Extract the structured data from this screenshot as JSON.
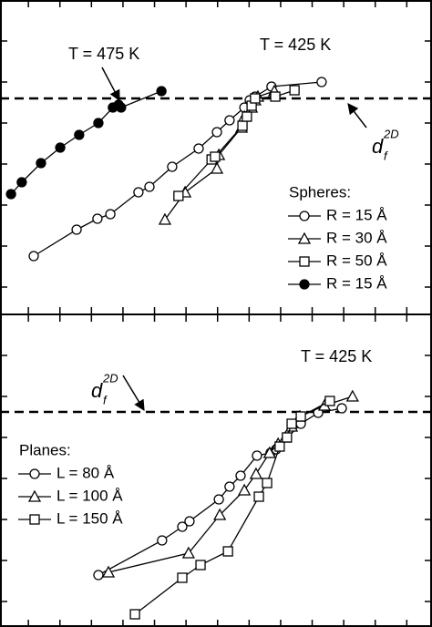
{
  "chart_data": [
    {
      "type": "line",
      "annotations": [
        "T = 475 K",
        "T = 425 K"
      ],
      "reference_line": 23.7,
      "reference_label": {
        "base": "d",
        "sub": "f",
        "sup": "2D"
      },
      "legend_title": "Spheres:",
      "legend": "lower right",
      "xlim": [
        0,
        137
      ],
      "xticks": [
        9,
        19,
        29,
        39,
        49,
        59,
        69,
        79,
        89,
        99,
        109,
        119,
        129
      ],
      "ylim": [
        0,
        34.5
      ],
      "yticks": [
        3,
        7.5,
        12,
        16.5,
        21,
        25.5,
        30
      ],
      "series": [
        {
          "name": "R = 15 Å",
          "color": "#000000",
          "marker": "circle",
          "filled": false,
          "x": [
            10.7,
            24.3,
            30.9,
            35.0,
            43.9,
            47.4,
            54.6,
            63.0,
            68.8,
            72.8,
            77.5,
            79.2,
            80.9,
            86.1,
            102.0
          ],
          "values": [
            6.4,
            9.3,
            10.5,
            11.0,
            13.4,
            14.0,
            16.2,
            18.2,
            20.0,
            21.3,
            22.7,
            23.5,
            23.9,
            25.0,
            25.5
          ]
        },
        {
          "name": "R = 30 Å",
          "color": "#000000",
          "marker": "triangle",
          "filled": false,
          "x": [
            52.3,
            58.7,
            68.8,
            69.4,
            76.6,
            77.5,
            79.8,
            80.9,
            81.8,
            87.0
          ],
          "values": [
            10.4,
            13.4,
            16.0,
            17.5,
            20.5,
            21.7,
            22.7,
            23.5,
            23.9,
            24.5
          ]
        },
        {
          "name": "R = 50 Å",
          "color": "#000000",
          "marker": "square",
          "filled": false,
          "x": [
            56.6,
            67.1,
            68.2,
            76.9,
            78.3,
            79.8,
            80.9,
            87.3,
            93.4
          ],
          "values": [
            13.0,
            17.0,
            17.3,
            20.7,
            21.7,
            22.9,
            23.7,
            23.9,
            24.6
          ]
        },
        {
          "name": "R = 15 Å",
          "color": "#000000",
          "marker": "circle",
          "filled": true,
          "x": [
            3.5,
            6.9,
            13.0,
            19.1,
            25.1,
            31.2,
            35.8,
            37.6,
            38.4,
            51.2
          ],
          "values": [
            13.2,
            14.5,
            16.6,
            18.3,
            19.7,
            21.0,
            22.7,
            23.0,
            22.7,
            24.5
          ]
        }
      ]
    },
    {
      "type": "line",
      "annotations": [
        "T = 425 K"
      ],
      "reference_line": 23.6,
      "reference_label": {
        "base": "d",
        "sub": "f",
        "sup": "2D"
      },
      "legend_title": "Planes:",
      "legend": "center left",
      "xlim": [
        0,
        137
      ],
      "xticks": [
        9,
        19,
        29,
        39,
        49,
        59,
        69,
        79,
        89,
        99,
        109,
        119,
        129
      ],
      "ylim": [
        0,
        34.3
      ],
      "yticks": [
        2.8,
        7.3,
        11.8,
        16.3,
        20.8,
        25.3,
        29.8
      ],
      "series": [
        {
          "name": "L = 80 Å",
          "color": "#000000",
          "marker": "circle",
          "filled": false,
          "x": [
            31.2,
            51.4,
            57.8,
            60.1,
            69.4,
            72.8,
            76.3,
            81.5,
            85.8,
            87.6,
            95.4,
            100.9,
            108.4
          ],
          "values": [
            5.7,
            9.5,
            11.0,
            11.6,
            14.0,
            15.4,
            16.6,
            18.8,
            19.1,
            19.5,
            22.3,
            23.5,
            24.0
          ]
        },
        {
          "name": "L = 100 Å",
          "color": "#000000",
          "marker": "triangle",
          "filled": false,
          "x": [
            34.4,
            59.8,
            69.7,
            77.5,
            81.2,
            85.5,
            88.2,
            90.5,
            92.5,
            95.1,
            102.9,
            111.8
          ],
          "values": [
            6.0,
            8.1,
            12.3,
            15.0,
            16.8,
            19.1,
            20.1,
            20.8,
            22.0,
            23.1,
            24.3,
            25.3
          ]
        },
        {
          "name": "L = 150 Å",
          "color": "#000000",
          "marker": "square",
          "filled": false,
          "x": [
            42.8,
            57.8,
            63.6,
            72.3,
            82.1,
            84.7,
            88.7,
            91.0,
            92.5,
            95.4,
            104.6
          ],
          "values": [
            1.4,
            5.4,
            6.8,
            8.3,
            14.3,
            15.8,
            19.8,
            20.8,
            22.3,
            23.1,
            24.8
          ]
        }
      ]
    }
  ]
}
